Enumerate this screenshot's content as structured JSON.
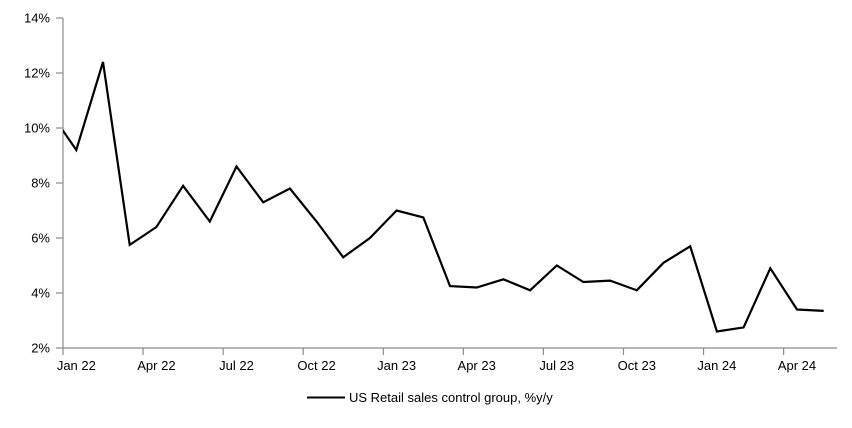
{
  "chart_data": {
    "type": "line",
    "title": "",
    "x": [
      "Dec 21",
      "Jan 22",
      "Feb 22",
      "Mar 22",
      "Apr 22",
      "May 22",
      "Jun 22",
      "Jul 22",
      "Aug 22",
      "Sep 22",
      "Oct 22",
      "Nov 22",
      "Dec 22",
      "Jan 23",
      "Feb 23",
      "Mar 23",
      "Apr 23",
      "May 23",
      "Jun 23",
      "Jul 23",
      "Aug 23",
      "Sep 23",
      "Oct 23",
      "Nov 23",
      "Dec 23",
      "Jan 24",
      "Feb 24",
      "Mar 24",
      "Apr 24",
      "May 24"
    ],
    "series": [
      {
        "name": "US Retail sales control group, %y/y",
        "color": "#000000",
        "values": [
          10.6,
          9.2,
          12.4,
          5.75,
          6.4,
          7.9,
          6.6,
          8.6,
          7.3,
          7.8,
          6.6,
          5.3,
          6.0,
          7.0,
          6.75,
          4.25,
          4.2,
          4.5,
          4.1,
          5.0,
          4.4,
          4.45,
          4.1,
          5.1,
          5.7,
          2.6,
          2.75,
          4.9,
          3.4,
          3.35
        ]
      }
    ],
    "clipped_points": [
      "Dec 21"
    ],
    "x_tick_labels": [
      "Jan 22",
      "Apr 22",
      "Jul 22",
      "Oct 22",
      "Jan 23",
      "Apr 23",
      "Jul 23",
      "Oct 23",
      "Jan 24",
      "Apr 24"
    ],
    "x_tick_interval_months": 3,
    "y_tick_labels": [
      "2%",
      "4%",
      "6%",
      "8%",
      "10%",
      "12%",
      "14%"
    ],
    "ylim": [
      2,
      14
    ],
    "y_step": 2,
    "grid": false,
    "legend_position": "bottom-center"
  },
  "colors": {
    "background": "#ffffff",
    "axis": "#8c8c8c",
    "line": "#000000",
    "text": "#000000"
  }
}
